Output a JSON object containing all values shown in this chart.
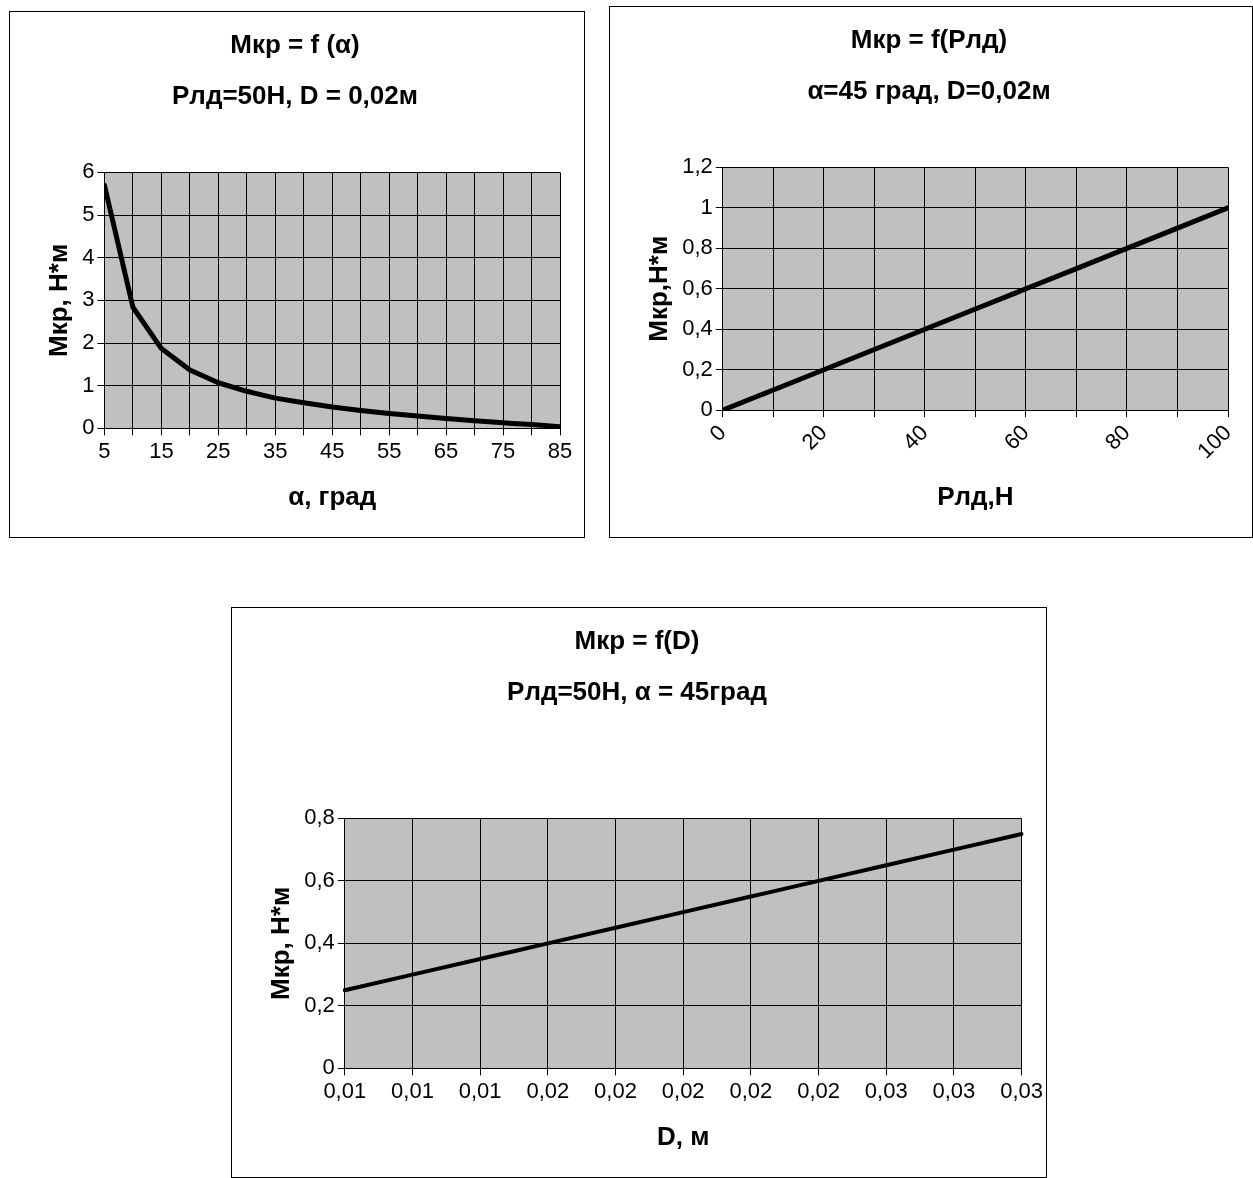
{
  "chart_data": [
    {
      "type": "line",
      "title": "Мкр = f (α)",
      "subtitle": "Рлд=50Н, D = 0,02м",
      "xlabel": "α, град",
      "ylabel": "Мкр, Н*м",
      "x": [
        5,
        10,
        15,
        20,
        25,
        30,
        35,
        40,
        45,
        50,
        55,
        60,
        65,
        70,
        75,
        80,
        85
      ],
      "series": [
        {
          "color": "#000000",
          "values": [
            5.7,
            2.84,
            1.87,
            1.37,
            1.07,
            0.87,
            0.71,
            0.6,
            0.5,
            0.42,
            0.35,
            0.29,
            0.23,
            0.18,
            0.13,
            0.09,
            0.04
          ]
        }
      ],
      "xlim": [
        5,
        85
      ],
      "xticks": [
        5,
        {
          "value": 10,
          "label": null
        },
        15,
        {
          "value": 20,
          "label": null
        },
        25,
        {
          "value": 30,
          "label": null
        },
        35,
        {
          "value": 40,
          "label": null
        },
        45,
        {
          "value": 50,
          "label": null
        },
        55,
        {
          "value": 60,
          "label": null
        },
        65,
        {
          "value": 70,
          "label": null
        },
        75,
        {
          "value": 80,
          "label": null
        },
        85
      ],
      "ylim": [
        0,
        6
      ],
      "yticks": [
        0,
        1,
        2,
        3,
        4,
        5,
        6
      ],
      "grid": true,
      "legend": false,
      "marker": "none",
      "line_style": "solid"
    },
    {
      "type": "line",
      "title": "Мкр = f(Рлд)",
      "subtitle": "α=45 град, D=0,02м",
      "xlabel": "Рлд,Н",
      "ylabel": "Мкр,Н*м",
      "x": [
        0,
        10,
        20,
        30,
        40,
        50,
        60,
        70,
        80,
        90,
        100
      ],
      "series": [
        {
          "color": "#000000",
          "values": [
            0,
            0.1,
            0.2,
            0.3,
            0.4,
            0.5,
            0.6,
            0.7,
            0.8,
            0.9,
            1.0
          ]
        }
      ],
      "xlim": [
        0,
        100
      ],
      "xticks": [
        0,
        {
          "value": 10,
          "label": null
        },
        20,
        {
          "value": 30,
          "label": null
        },
        40,
        {
          "value": 50,
          "label": null
        },
        60,
        {
          "value": 70,
          "label": null
        },
        80,
        {
          "value": 90,
          "label": null
        },
        100
      ],
      "ylim": [
        0,
        1.2
      ],
      "yticks": [
        0,
        {
          "value": 0.2,
          "label": "0,2"
        },
        {
          "value": 0.4,
          "label": "0,4"
        },
        {
          "value": 0.6,
          "label": "0,6"
        },
        {
          "value": 0.8,
          "label": "0,8"
        },
        1,
        {
          "value": 1.2,
          "label": "1,2"
        }
      ],
      "grid": true,
      "legend": false,
      "marker": "none",
      "line_style": "solid"
    },
    {
      "type": "line",
      "title": "Мкр = f(D)",
      "subtitle": "Рлд=50Н, α = 45град",
      "xlabel": "D, м",
      "ylabel": "Мкр, Н*м",
      "categories": [
        "0,01",
        "0,01",
        "0,01",
        "0,02",
        "0,02",
        "0,02",
        "0,02",
        "0,02",
        "0,03",
        "0,03",
        "0,03"
      ],
      "series": [
        {
          "color": "#000000",
          "values": [
            0.25,
            0.3,
            0.35,
            0.4,
            0.45,
            0.5,
            0.55,
            0.6,
            0.65,
            0.7,
            0.75
          ]
        }
      ],
      "ylim": [
        0,
        0.8
      ],
      "yticks": [
        0,
        {
          "value": 0.2,
          "label": "0,2"
        },
        {
          "value": 0.4,
          "label": "0,4"
        },
        {
          "value": 0.6,
          "label": "0,6"
        },
        {
          "value": 0.8,
          "label": "0,8"
        }
      ],
      "grid": true,
      "legend": false,
      "marker": "none",
      "line_style": "solid"
    }
  ]
}
